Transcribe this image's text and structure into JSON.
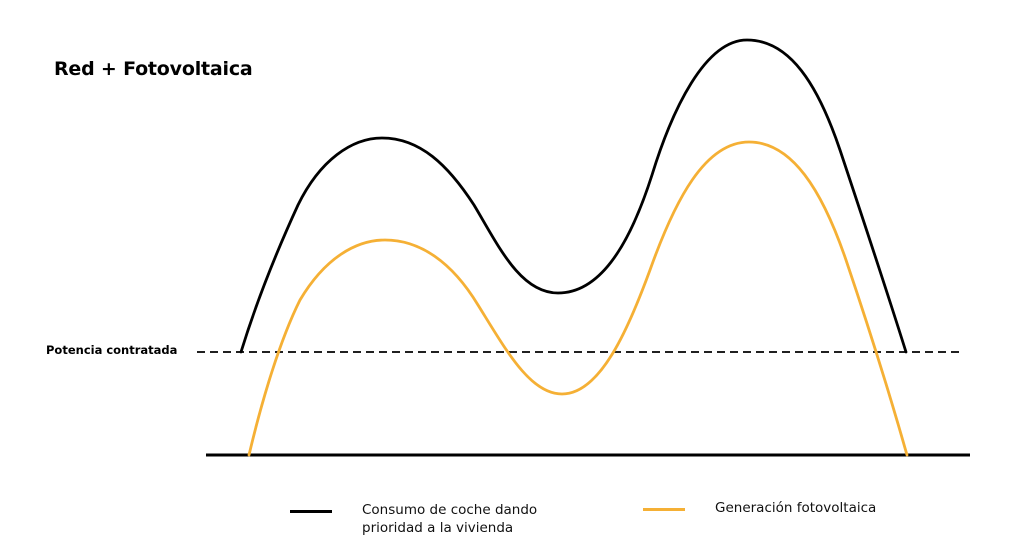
{
  "title": "Red + Fotovoltaica",
  "threshold_label": "Potencia contratada",
  "legend": [
    {
      "label": "Consumo de coche dando\nprioridad a la vivienda",
      "color": "#000000",
      "icon": "black-line"
    },
    {
      "label": "Generación fotovoltaica",
      "color": "#F5B035",
      "icon": "orange-line"
    }
  ],
  "colors": {
    "consumo": "#000000",
    "generacion": "#F5B035",
    "baseline": "#000000",
    "threshold": "#000000"
  }
}
